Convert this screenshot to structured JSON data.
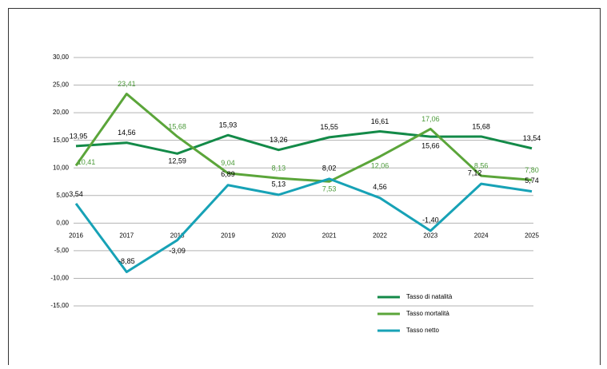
{
  "chart_data": {
    "type": "line",
    "categories": [
      "2016",
      "2017",
      "2018",
      "2019",
      "2020",
      "2021",
      "2022",
      "2023",
      "2024",
      "2025"
    ],
    "series": [
      {
        "name": "Tasso di natalità",
        "color": "#138a48",
        "label_color": "#000000",
        "values": [
          13.95,
          14.56,
          12.59,
          15.93,
          13.26,
          15.55,
          16.61,
          15.66,
          15.68,
          13.54
        ],
        "value_labels": [
          "13,95",
          "14,56",
          "12,59",
          "15,93",
          "13,26",
          "15,55",
          "16,61",
          "15,66",
          "15,68",
          "13,54"
        ]
      },
      {
        "name": "Tasso mortalità",
        "color": "#5ba53a",
        "label_color": "#4c9a3a",
        "values": [
          10.41,
          23.41,
          15.68,
          9.04,
          8.13,
          7.53,
          12.06,
          17.06,
          8.56,
          7.8
        ],
        "value_labels": [
          "10,41",
          "23,41",
          "15,68",
          "9,04",
          "8,13",
          "7,53",
          "12,06",
          "17,06",
          "8,56",
          "7,80"
        ]
      },
      {
        "name": "Tasso netto",
        "color": "#17a2b6",
        "label_color": "#000000",
        "values": [
          3.54,
          -8.85,
          -3.09,
          6.89,
          5.13,
          8.02,
          4.56,
          -1.4,
          7.12,
          5.74
        ],
        "value_labels": [
          "3,54",
          "-8,85",
          "-3,09",
          "6,89",
          "5,13",
          "8,02",
          "4,56",
          "-1,40",
          "7,12",
          "5,74"
        ]
      }
    ],
    "ylim": [
      -15,
      30
    ],
    "yticks": [
      {
        "value": -15,
        "label": "-15,00"
      },
      {
        "value": -10,
        "label": "-10,00"
      },
      {
        "value": -5,
        "label": "-5,00"
      },
      {
        "value": 0,
        "label": "0,00"
      },
      {
        "value": 5,
        "label": "5,00"
      },
      {
        "value": 10,
        "label": "10,00"
      },
      {
        "value": 15,
        "label": "15,00"
      },
      {
        "value": 20,
        "label": "20,00"
      },
      {
        "value": 25,
        "label": "25,00"
      },
      {
        "value": 30,
        "label": "30,00"
      }
    ],
    "grid": true,
    "legend": "lower right"
  }
}
